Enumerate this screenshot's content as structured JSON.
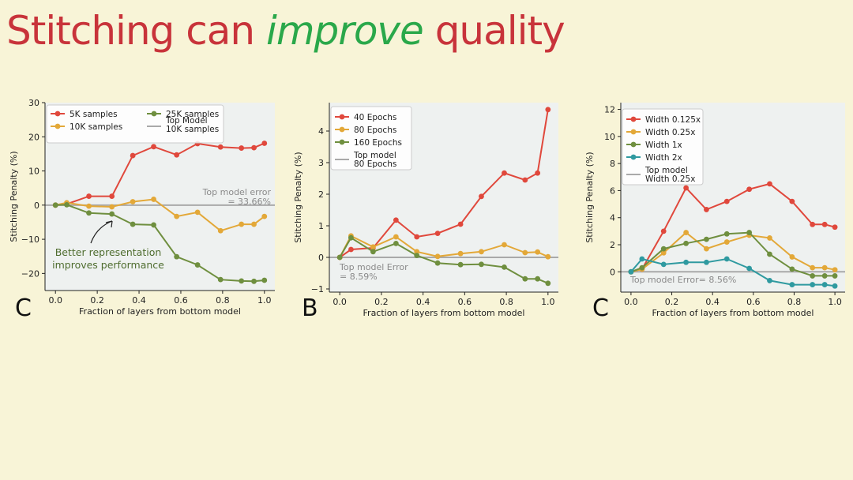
{
  "title": {
    "part1": "Stitching can ",
    "emphasis": "improve",
    "part2": " quality",
    "color": "#c8333a",
    "emphasis_color": "#2aa84a"
  },
  "chart_data": [
    {
      "type": "line",
      "panel_label": "C",
      "xlabel": "Fraction of layers from bottom model",
      "ylabel": "Stitching Penalty (%)",
      "xlim": [
        -0.05,
        1.05
      ],
      "ylim": [
        -25,
        30
      ],
      "xticks": [
        0.0,
        0.2,
        0.4,
        0.6,
        0.8,
        1.0
      ],
      "yticks": [
        -20,
        -10,
        0,
        10,
        20,
        30
      ],
      "grid": false,
      "legend_position": "top-left",
      "legend_columns": 2,
      "reference_line": {
        "y": 0,
        "legend": "Top Model\n10K samples",
        "label": "Top model error\n= 33.66%"
      },
      "annotation": {
        "text": "Better representation\nimproves performance",
        "color": "#4f6d2f"
      },
      "series": [
        {
          "name": "5K samples",
          "color": "#e0483c",
          "x": [
            0.0,
            0.054,
            0.16,
            0.27,
            0.37,
            0.47,
            0.58,
            0.68,
            0.79,
            0.89,
            0.95,
            1.0
          ],
          "y": [
            0,
            0.3,
            2.6,
            2.6,
            14.5,
            17.1,
            14.7,
            18.0,
            17.0,
            16.7,
            16.8,
            18.1
          ]
        },
        {
          "name": "10K samples",
          "color": "#e3a838",
          "x": [
            0.0,
            0.054,
            0.16,
            0.27,
            0.37,
            0.47,
            0.58,
            0.68,
            0.79,
            0.89,
            0.95,
            1.0
          ],
          "y": [
            0,
            0.7,
            -0.3,
            -0.5,
            1.0,
            1.7,
            -3.3,
            -2.1,
            -7.5,
            -5.6,
            -5.6,
            -3.3
          ]
        },
        {
          "name": "25K samples",
          "color": "#6f8f3f",
          "x": [
            0.0,
            0.054,
            0.16,
            0.27,
            0.37,
            0.47,
            0.58,
            0.68,
            0.79,
            0.89,
            0.95,
            1.0
          ],
          "y": [
            0,
            0.1,
            -2.3,
            -2.6,
            -5.6,
            -5.8,
            -15.1,
            -17.5,
            -21.8,
            -22.2,
            -22.3,
            -22.0
          ]
        }
      ]
    },
    {
      "type": "line",
      "panel_label": "B",
      "xlabel": "Fraction of layers from bottom model",
      "ylabel": "Stitching Penalty (%)",
      "xlim": [
        -0.05,
        1.05
      ],
      "ylim": [
        -1.1,
        4.9
      ],
      "xticks": [
        0.0,
        0.2,
        0.4,
        0.6,
        0.8,
        1.0
      ],
      "yticks": [
        -1,
        0,
        1,
        2,
        3,
        4
      ],
      "grid": false,
      "legend_position": "top-left",
      "legend_columns": 1,
      "reference_line": {
        "y": 0,
        "legend": "Top model\n80 Epochs",
        "label": "Top model Error\n= 8.59%"
      },
      "series": [
        {
          "name": "40 Epochs",
          "color": "#e0483c",
          "x": [
            0.0,
            0.054,
            0.16,
            0.27,
            0.37,
            0.47,
            0.58,
            0.68,
            0.79,
            0.89,
            0.95,
            1.0
          ],
          "y": [
            0,
            0.25,
            0.3,
            1.18,
            0.65,
            0.76,
            1.05,
            1.93,
            2.67,
            2.45,
            2.67,
            4.68
          ]
        },
        {
          "name": "80 Epochs",
          "color": "#e3a838",
          "x": [
            0.0,
            0.054,
            0.16,
            0.27,
            0.37,
            0.47,
            0.58,
            0.68,
            0.79,
            0.89,
            0.95,
            1.0
          ],
          "y": [
            0,
            0.68,
            0.33,
            0.65,
            0.18,
            0.03,
            0.12,
            0.18,
            0.4,
            0.15,
            0.17,
            0.02
          ]
        },
        {
          "name": "160 Epochs",
          "color": "#6f8f3f",
          "x": [
            0.0,
            0.054,
            0.16,
            0.27,
            0.37,
            0.47,
            0.58,
            0.68,
            0.79,
            0.89,
            0.95,
            1.0
          ],
          "y": [
            0,
            0.62,
            0.18,
            0.44,
            0.06,
            -0.18,
            -0.23,
            -0.22,
            -0.31,
            -0.68,
            -0.68,
            -0.82
          ]
        }
      ]
    },
    {
      "type": "line",
      "panel_label": "C",
      "xlabel": "Fraction of layers from bottom model",
      "ylabel": "Stitching Penalty (%)",
      "xlim": [
        -0.05,
        1.05
      ],
      "ylim": [
        -1.5,
        12.5
      ],
      "xticks": [
        0.0,
        0.2,
        0.4,
        0.6,
        0.8,
        1.0
      ],
      "yticks": [
        0,
        2,
        4,
        6,
        8,
        10,
        12
      ],
      "grid": false,
      "legend_position": "top-left",
      "legend_columns": 1,
      "reference_line": {
        "y": 0,
        "legend": "Top model\nWidth 0.25x",
        "label": "Top model Error= 8.56%"
      },
      "series": [
        {
          "name": "Width 0.125x",
          "color": "#e0483c",
          "x": [
            0.0,
            0.054,
            0.16,
            0.27,
            0.37,
            0.47,
            0.58,
            0.68,
            0.79,
            0.89,
            0.95,
            1.0
          ],
          "y": [
            0,
            0.2,
            3.0,
            6.2,
            4.6,
            5.2,
            6.1,
            6.5,
            5.2,
            3.5,
            3.5,
            3.3
          ]
        },
        {
          "name": "Width 0.25x",
          "color": "#e3a838",
          "x": [
            0.0,
            0.054,
            0.16,
            0.27,
            0.37,
            0.47,
            0.58,
            0.68,
            0.79,
            0.89,
            0.95,
            1.0
          ],
          "y": [
            0,
            0.2,
            1.4,
            2.9,
            1.7,
            2.2,
            2.7,
            2.5,
            1.1,
            0.3,
            0.3,
            0.15
          ]
        },
        {
          "name": "Width 1x",
          "color": "#6f8f3f",
          "x": [
            0.0,
            0.054,
            0.16,
            0.27,
            0.37,
            0.47,
            0.58,
            0.68,
            0.79,
            0.89,
            0.95,
            1.0
          ],
          "y": [
            0,
            0.3,
            1.7,
            2.1,
            2.4,
            2.8,
            2.9,
            1.3,
            0.2,
            -0.3,
            -0.3,
            -0.3
          ]
        },
        {
          "name": "Width 2x",
          "color": "#2f9aa0",
          "x": [
            0.0,
            0.054,
            0.16,
            0.27,
            0.37,
            0.47,
            0.58,
            0.68,
            0.79,
            0.89,
            0.95,
            1.0
          ],
          "y": [
            0,
            0.95,
            0.55,
            0.7,
            0.7,
            0.95,
            0.25,
            -0.65,
            -0.95,
            -0.95,
            -0.95,
            -1.05
          ]
        }
      ]
    }
  ]
}
